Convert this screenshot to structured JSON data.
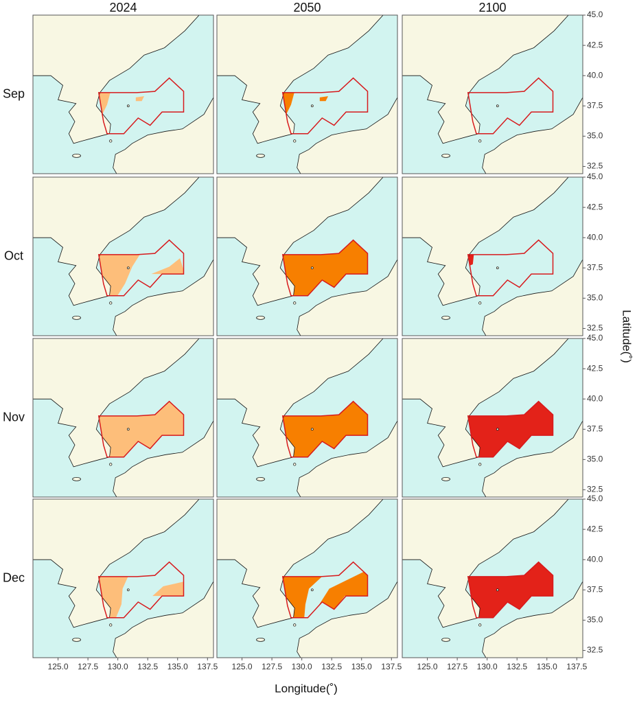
{
  "columns": [
    "2024",
    "2050",
    "2100"
  ],
  "rows": [
    "Sep",
    "Oct",
    "Nov",
    "Dec"
  ],
  "x_axis": {
    "label": "Longitude(˚)",
    "xlim": [
      122.9,
      138
    ],
    "ticks": [
      {
        "value": 125,
        "label": "125.0"
      },
      127.5,
      {
        "value": 130,
        "label": "130.0"
      },
      132.5,
      {
        "value": 135,
        "label": "135.0"
      },
      137.5
    ]
  },
  "y_axis": {
    "label": "Latitude(˚)",
    "ylim": [
      31.9,
      45
    ],
    "ticks": [
      32.5,
      {
        "value": 35,
        "label": "35.0"
      },
      37.5,
      {
        "value": 40,
        "label": "40.0"
      },
      42.5,
      {
        "value": 45,
        "label": "45.0"
      }
    ]
  },
  "fills": [
    [
      "#fdbe7a",
      "#f77f00",
      null
    ],
    [
      "#fdbe7a",
      "#f77f00",
      "#e32219"
    ],
    [
      "#fdbe7a",
      "#f77f00",
      "#e32219"
    ],
    [
      "#fdbe7a",
      "#f77f00",
      "#e32219"
    ]
  ]
}
